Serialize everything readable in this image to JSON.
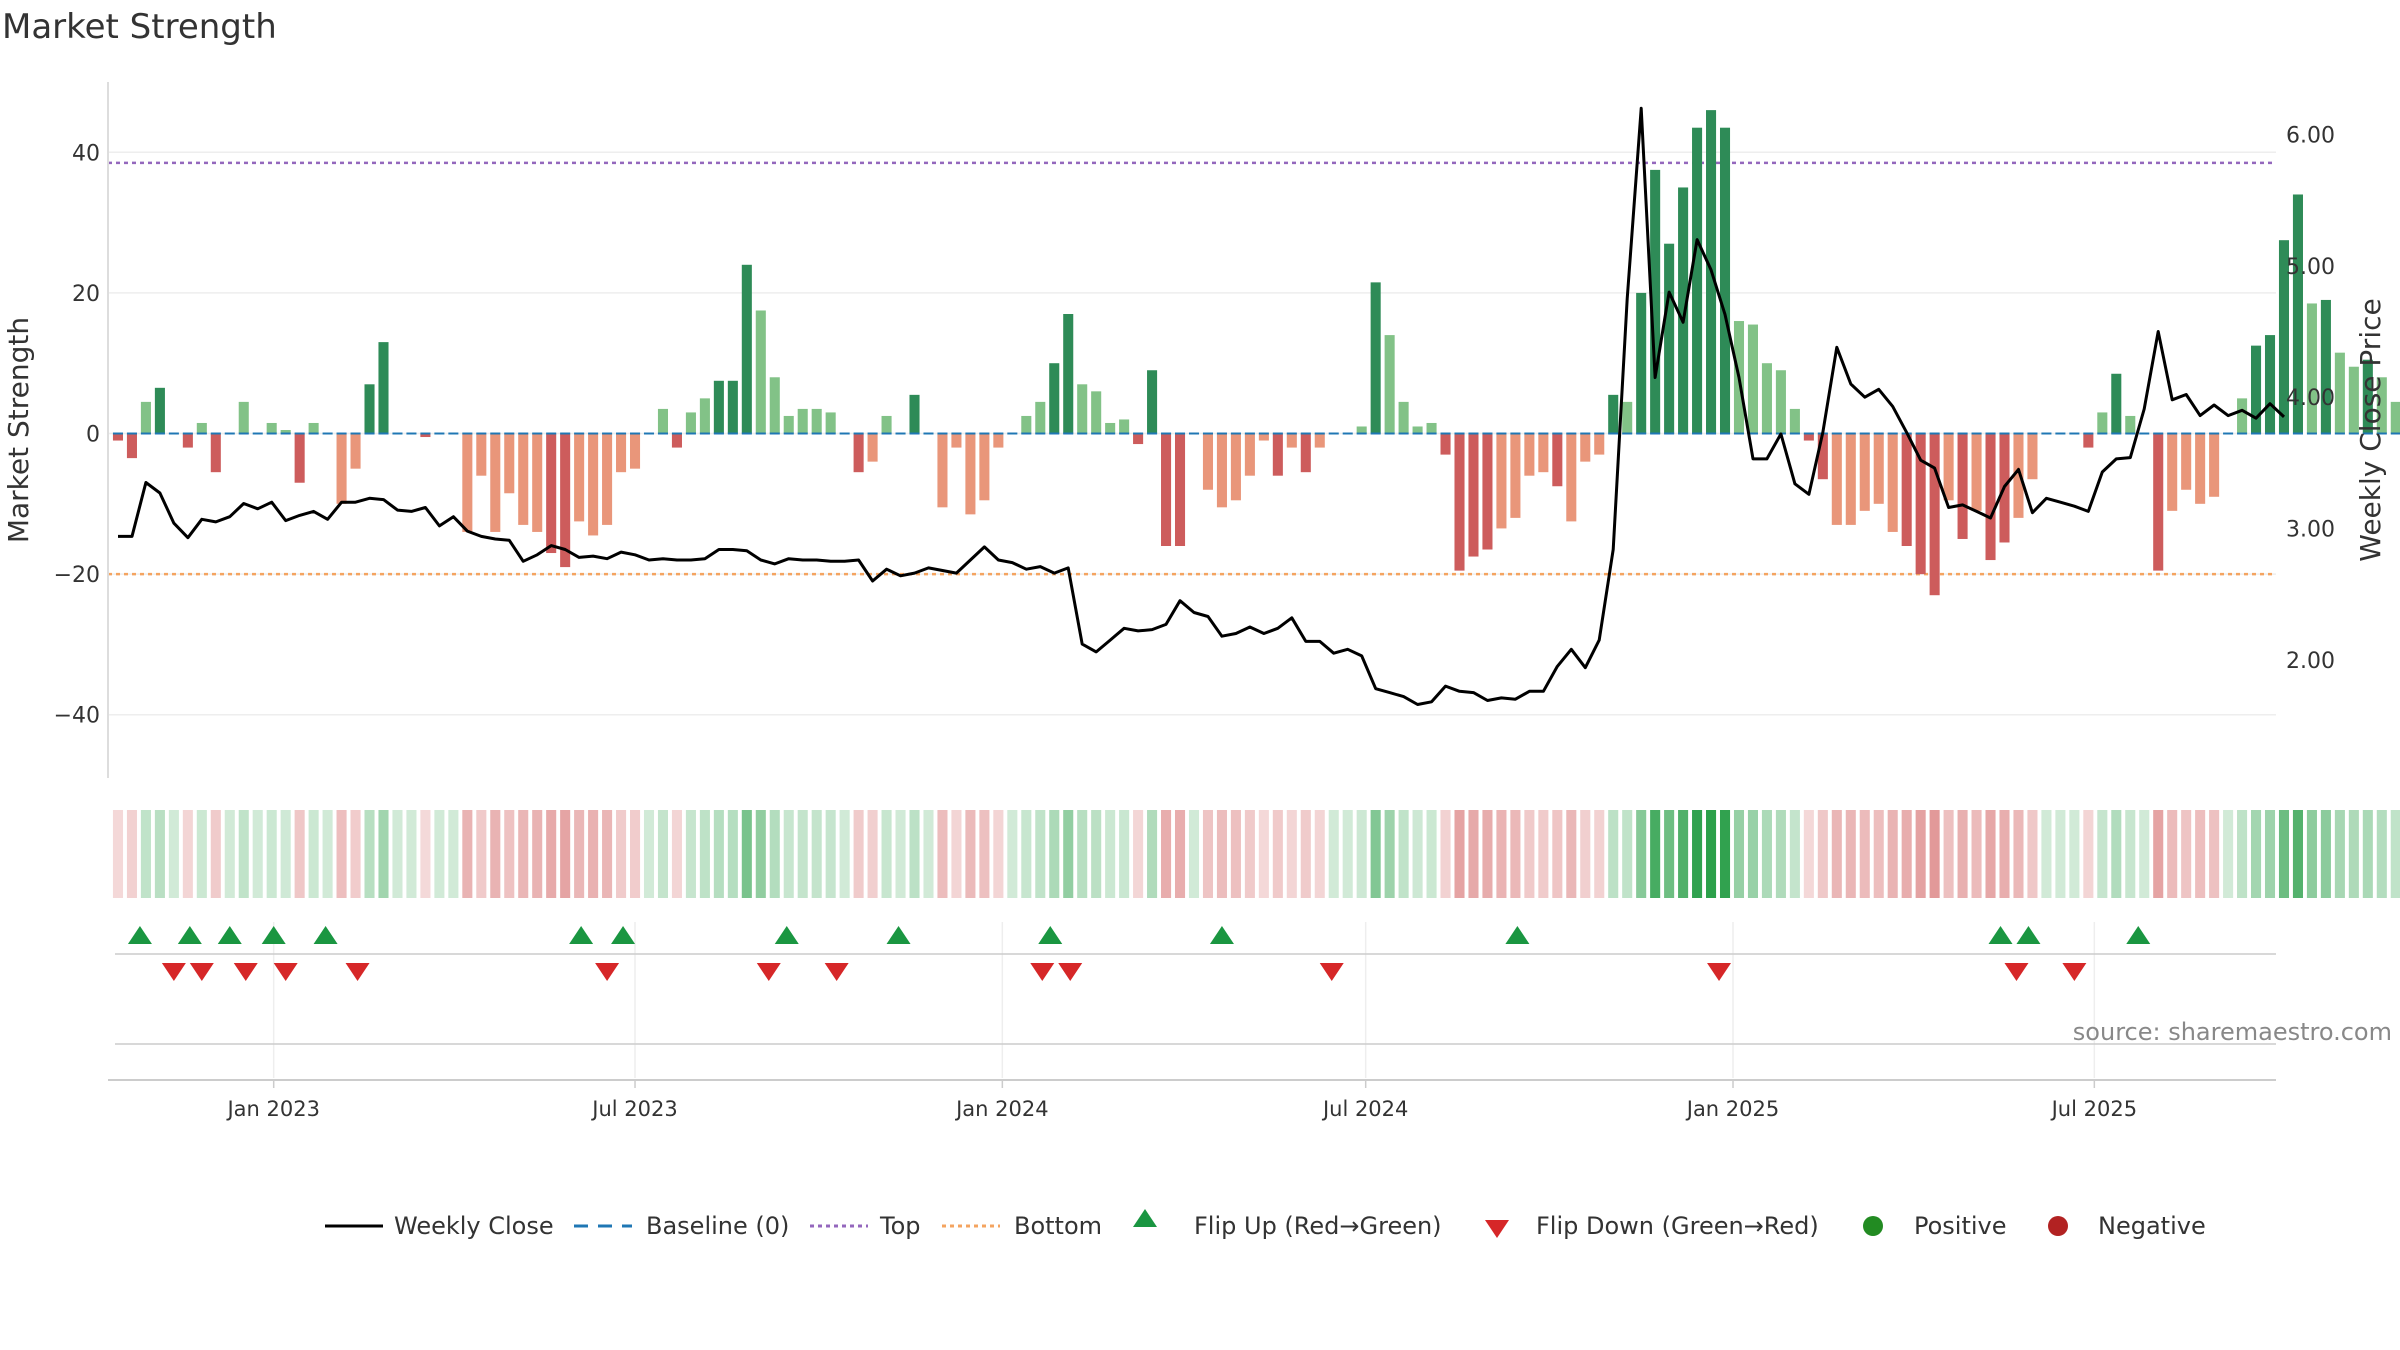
{
  "chart_data": {
    "type": "bar",
    "title": "Market Strength",
    "ylabel": "Market Strength",
    "y2label": "Weekly Close Price",
    "ylim": [
      -49,
      50
    ],
    "y2lim": [
      1.1,
      6.4
    ],
    "yticks": [
      "40",
      "20",
      "0",
      "−20",
      "−40"
    ],
    "ytick_values": [
      40,
      20,
      0,
      -20,
      -40
    ],
    "y2ticks": [
      "6.00",
      "5.00",
      "4.00",
      "3.00",
      "2.00"
    ],
    "y2tick_values": [
      6,
      5,
      4,
      3,
      2
    ],
    "x_range": [
      "2022-10-10",
      "2025-09-30"
    ],
    "xticks": [
      {
        "date": "2023-01-01",
        "label": "Jan 2023"
      },
      {
        "date": "2023-07-01",
        "label": "Jul 2023"
      },
      {
        "date": "2024-01-01",
        "label": "Jan 2024"
      },
      {
        "date": "2024-07-01",
        "label": "Jul 2024"
      },
      {
        "date": "2025-01-01",
        "label": "Jan 2025"
      },
      {
        "date": "2025-07-01",
        "label": "Jul 2025"
      }
    ],
    "start_date": "2022-10-15",
    "top_level": 38.5,
    "bottom_level": -20,
    "colors": {
      "strong_pos": "#2e8b57",
      "weak_pos": "#82c287",
      "strong_neg": "#cd5c5c",
      "weak_neg": "#e9967a",
      "top": "#9467bd",
      "bottom": "#f4a460",
      "baseline": "#1f77b4",
      "close": "#000000",
      "flip_up": "#1a9641",
      "flip_down": "#d62728",
      "positive": "#228b22",
      "negative": "#b22222"
    },
    "strength": [
      -1,
      -3.5,
      4.5,
      6.5,
      0,
      -2,
      1.5,
      -5.5,
      0,
      4.5,
      0,
      1.5,
      0.5,
      -7,
      1.5,
      0,
      -10,
      -5,
      7,
      13,
      0,
      0,
      -0.5,
      0,
      0,
      -14,
      -6,
      -14,
      -8.5,
      -13,
      -14,
      -17,
      -19,
      -12.5,
      -14.5,
      -13,
      -5.5,
      -5,
      0,
      3.5,
      -2,
      3,
      5,
      7.5,
      7.5,
      24,
      17.5,
      8,
      2.5,
      3.5,
      3.5,
      3,
      0,
      -5.5,
      -4,
      2.5,
      0,
      5.5,
      0,
      -10.5,
      -2,
      -11.5,
      -9.5,
      -2,
      0,
      2.5,
      4.5,
      10,
      17,
      7,
      6,
      1.5,
      2,
      -1.5,
      9,
      -16,
      -16,
      0,
      -8,
      -10.5,
      -9.5,
      -6,
      -1,
      -6,
      -2,
      -5.5,
      -2,
      0,
      0,
      1,
      21.5,
      14,
      4.5,
      1,
      1.5,
      -3,
      -19.5,
      -17.5,
      -16.5,
      -13.5,
      -12,
      -6,
      -5.5,
      -7.5,
      -12.5,
      -4,
      -3,
      5.5,
      4.5,
      20,
      37.5,
      27,
      35,
      43.5,
      46,
      43.5,
      16,
      15.5,
      10,
      9,
      3.5,
      -1,
      -6.5,
      -13,
      -13,
      -11,
      -10,
      -14,
      -16,
      -20,
      -23,
      -9.5,
      -15,
      -11,
      -18,
      -15.5,
      -12,
      -6.5,
      0,
      0,
      0,
      -2,
      3,
      8.5,
      2.5,
      0,
      -19.5,
      -11,
      -8,
      -10,
      -9,
      0,
      5,
      12.5,
      14,
      27.5,
      34,
      18.5,
      19,
      11.5,
      9.5,
      10.5,
      8,
      4.5,
      5.5,
      0
    ],
    "weekly_close": [
      2.94,
      2.94,
      3.35,
      3.27,
      3.04,
      2.93,
      3.07,
      3.05,
      3.09,
      3.19,
      3.15,
      3.2,
      3.06,
      3.1,
      3.13,
      3.07,
      3.2,
      3.2,
      3.23,
      3.22,
      3.14,
      3.13,
      3.16,
      3.02,
      3.09,
      2.98,
      2.94,
      2.92,
      2.91,
      2.75,
      2.8,
      2.87,
      2.84,
      2.78,
      2.79,
      2.77,
      2.82,
      2.8,
      2.76,
      2.77,
      2.76,
      2.76,
      2.77,
      2.84,
      2.84,
      2.83,
      2.76,
      2.73,
      2.77,
      2.76,
      2.76,
      2.75,
      2.75,
      2.76,
      2.6,
      2.69,
      2.64,
      2.66,
      2.7,
      2.68,
      2.66,
      2.76,
      2.86,
      2.76,
      2.74,
      2.69,
      2.71,
      2.66,
      2.7,
      2.12,
      2.06,
      2.15,
      2.24,
      2.22,
      2.23,
      2.27,
      2.45,
      2.36,
      2.33,
      2.18,
      2.2,
      2.25,
      2.2,
      2.24,
      2.32,
      2.14,
      2.14,
      2.05,
      2.08,
      2.03,
      1.78,
      1.75,
      1.72,
      1.66,
      1.68,
      1.8,
      1.76,
      1.75,
      1.69,
      1.71,
      1.7,
      1.76,
      1.76,
      1.95,
      2.08,
      1.94,
      2.15,
      2.84,
      4.75,
      6.2,
      4.15,
      4.8,
      4.57,
      5.2,
      4.97,
      4.63,
      4.15,
      3.53,
      3.53,
      3.72,
      3.34,
      3.26,
      3.73,
      4.38,
      4.1,
      4,
      4.06,
      3.93,
      3.73,
      3.52,
      3.46,
      3.16,
      3.18,
      3.13,
      3.08,
      3.32,
      3.45,
      3.12,
      3.23,
      3.2,
      3.17,
      3.13,
      3.43,
      3.53,
      3.54,
      3.91,
      4.5,
      3.98,
      4.02,
      3.86,
      3.94,
      3.86,
      3.9,
      3.84,
      3.95,
      3.85
    ]
  },
  "flip_up_dates": [
    "2022-10-26",
    "2022-11-20",
    "2022-12-10",
    "2023-01-01",
    "2023-01-27",
    "2023-06-04",
    "2023-06-25",
    "2023-09-15",
    "2023-11-10",
    "2024-01-25",
    "2024-04-20",
    "2024-09-15",
    "2025-05-15",
    "2025-05-29",
    "2025-07-23"
  ],
  "flip_down_dates": [
    "2022-11-12",
    "2022-11-26",
    "2022-12-18",
    "2023-01-07",
    "2023-02-12",
    "2023-06-17",
    "2023-09-06",
    "2023-10-10",
    "2024-01-21",
    "2024-02-04",
    "2024-06-14",
    "2024-12-25",
    "2025-05-23",
    "2025-06-21"
  ],
  "source": "source: sharemaestro.com",
  "legend": {
    "weekly_close": "Weekly Close",
    "baseline": "Baseline (0)",
    "top": "Top",
    "bottom": "Bottom",
    "flip_up": "Flip Up (Red→Green)",
    "flip_down": "Flip Down (Green→Red)",
    "positive": "Positive",
    "negative": "Negative"
  }
}
